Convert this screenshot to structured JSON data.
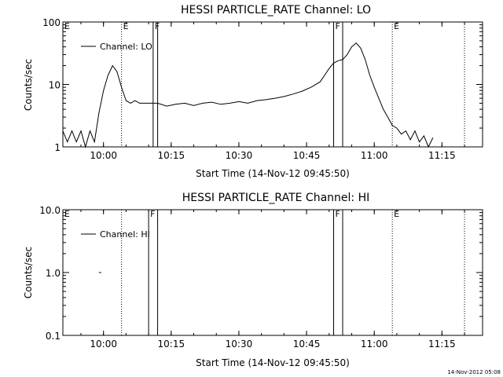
{
  "footer": {
    "timestamp": "14-Nov-2012 05:08"
  },
  "chart_data": [
    {
      "type": "line",
      "title": "HESSI PARTICLE_RATE Channel: LO",
      "xlabel": "Start Time (14-Nov-12 09:45:50)",
      "ylabel": "Counts/sec",
      "yscale": "log",
      "xlim": [
        "09:51",
        "11:24"
      ],
      "ylim": [
        1,
        100
      ],
      "x_ticks": [
        "10:00",
        "10:15",
        "10:30",
        "10:45",
        "11:00",
        "11:15"
      ],
      "y_ticks": [
        "1",
        "10",
        "100"
      ],
      "legend": {
        "label": "Channel: LO",
        "placement": "top-left"
      },
      "markers": [
        {
          "time": "10:04",
          "label": "E",
          "style": "dotted"
        },
        {
          "time": "10:11",
          "label": "F",
          "style": "solid"
        },
        {
          "time": "10:12",
          "label": "",
          "style": "solid"
        },
        {
          "time": "10:51",
          "label": "F",
          "style": "solid"
        },
        {
          "time": "10:53",
          "label": "",
          "style": "solid"
        },
        {
          "time": "11:04",
          "label": "E",
          "style": "dotted"
        },
        {
          "time": "11:20",
          "label": "",
          "style": "dotted"
        }
      ],
      "edge_labels": [
        {
          "label": "E",
          "position": "left"
        }
      ],
      "series": [
        {
          "values": [
            [
              "09:51",
              1.8
            ],
            [
              "09:52",
              1.2
            ],
            [
              "09:53",
              1.8
            ],
            [
              "09:54",
              1.2
            ],
            [
              "09:55",
              1.8
            ],
            [
              "09:56",
              1.0
            ],
            [
              "09:57",
              1.8
            ],
            [
              "09:58",
              1.2
            ],
            [
              "09:59",
              3.5
            ],
            [
              "10:00",
              8
            ],
            [
              "10:01",
              14
            ],
            [
              "10:02",
              20
            ],
            [
              "10:03",
              16
            ],
            [
              "10:04",
              9
            ],
            [
              "10:05",
              5.5
            ],
            [
              "10:06",
              5
            ],
            [
              "10:07",
              5.5
            ],
            [
              "10:08",
              5
            ],
            [
              "10:10",
              5
            ],
            [
              "10:12",
              5
            ],
            [
              "10:14",
              4.5
            ],
            [
              "10:16",
              4.8
            ],
            [
              "10:18",
              5
            ],
            [
              "10:20",
              4.6
            ],
            [
              "10:22",
              5
            ],
            [
              "10:24",
              5.2
            ],
            [
              "10:26",
              4.8
            ],
            [
              "10:28",
              5
            ],
            [
              "10:30",
              5.3
            ],
            [
              "10:32",
              5
            ],
            [
              "10:34",
              5.5
            ],
            [
              "10:36",
              5.7
            ],
            [
              "10:38",
              6
            ],
            [
              "10:40",
              6.4
            ],
            [
              "10:42",
              7
            ],
            [
              "10:44",
              7.8
            ],
            [
              "10:46",
              9
            ],
            [
              "10:48",
              11
            ],
            [
              "10:49",
              14
            ],
            [
              "10:50",
              18
            ],
            [
              "10:51",
              22
            ],
            [
              "10:52",
              24
            ],
            [
              "10:53",
              25
            ],
            [
              "10:54",
              30
            ],
            [
              "10:55",
              40
            ],
            [
              "10:56",
              46
            ],
            [
              "10:57",
              38
            ],
            [
              "10:58",
              25
            ],
            [
              "10:59",
              14
            ],
            [
              "11:00",
              9
            ],
            [
              "11:01",
              6
            ],
            [
              "11:02",
              4
            ],
            [
              "11:03",
              3
            ],
            [
              "11:04",
              2.2
            ],
            [
              "11:05",
              2
            ],
            [
              "11:06",
              1.6
            ],
            [
              "11:07",
              1.8
            ],
            [
              "11:08",
              1.3
            ],
            [
              "11:09",
              1.8
            ],
            [
              "11:10",
              1.2
            ],
            [
              "11:11",
              1.5
            ],
            [
              "11:12",
              1.0
            ],
            [
              "11:13",
              1.4
            ]
          ]
        }
      ]
    },
    {
      "type": "line",
      "title": "HESSI PARTICLE_RATE Channel: HI",
      "xlabel": "Start Time (14-Nov-12 09:45:50)",
      "ylabel": "Counts/sec",
      "yscale": "log",
      "xlim": [
        "09:51",
        "11:24"
      ],
      "ylim": [
        0.1,
        10
      ],
      "x_ticks": [
        "10:00",
        "10:15",
        "10:30",
        "10:45",
        "11:00",
        "11:15"
      ],
      "y_ticks": [
        "0.1",
        "1.0",
        "10.0"
      ],
      "legend": {
        "label": "Channel: HI",
        "placement": "top-left"
      },
      "markers": [
        {
          "time": "10:04",
          "label": "",
          "style": "dotted"
        },
        {
          "time": "10:10",
          "label": "F",
          "style": "solid"
        },
        {
          "time": "10:12",
          "label": "",
          "style": "solid"
        },
        {
          "time": "10:51",
          "label": "F",
          "style": "solid"
        },
        {
          "time": "10:53",
          "label": "",
          "style": "solid"
        },
        {
          "time": "11:04",
          "label": "E",
          "style": "dotted"
        },
        {
          "time": "11:20",
          "label": "",
          "style": "dotted"
        }
      ],
      "edge_labels": [
        {
          "label": "E",
          "position": "left"
        }
      ],
      "series": [
        {
          "values": [
            [
              "09:59",
              1.0
            ],
            [
              "09:59.5",
              1.0
            ]
          ]
        }
      ]
    }
  ]
}
